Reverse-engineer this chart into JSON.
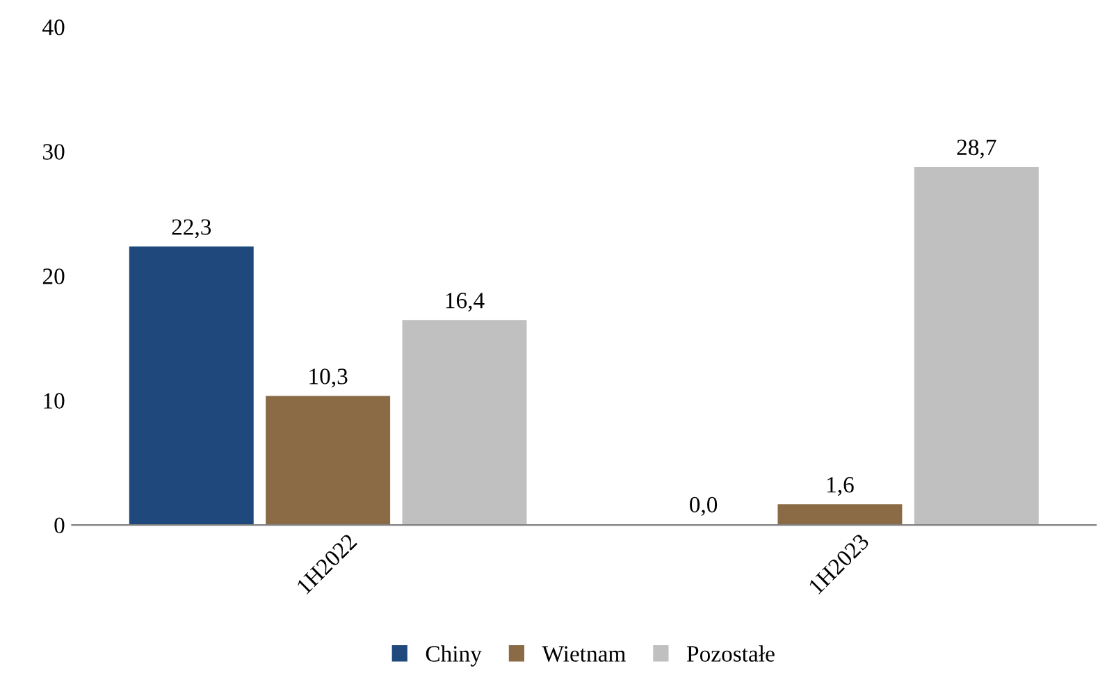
{
  "chart_data": {
    "type": "bar",
    "categories": [
      "1H2022",
      "1H2023"
    ],
    "series": [
      {
        "name": "Chiny",
        "color": "#1f497d",
        "values": [
          22.3,
          0.0
        ],
        "value_labels": [
          "22,3",
          "0,0"
        ]
      },
      {
        "name": "Wietnam",
        "color": "#8b6a46",
        "values": [
          10.3,
          1.6
        ],
        "value_labels": [
          "10,3",
          "1,6"
        ]
      },
      {
        "name": "Pozostałe",
        "color": "#c0c0c0",
        "values": [
          16.4,
          28.7
        ],
        "value_labels": [
          "16,4",
          "28,7"
        ]
      }
    ],
    "ylim": [
      0,
      40
    ],
    "yticks": [
      0,
      10,
      20,
      30,
      40
    ],
    "grid": false,
    "legend": "bottom"
  }
}
